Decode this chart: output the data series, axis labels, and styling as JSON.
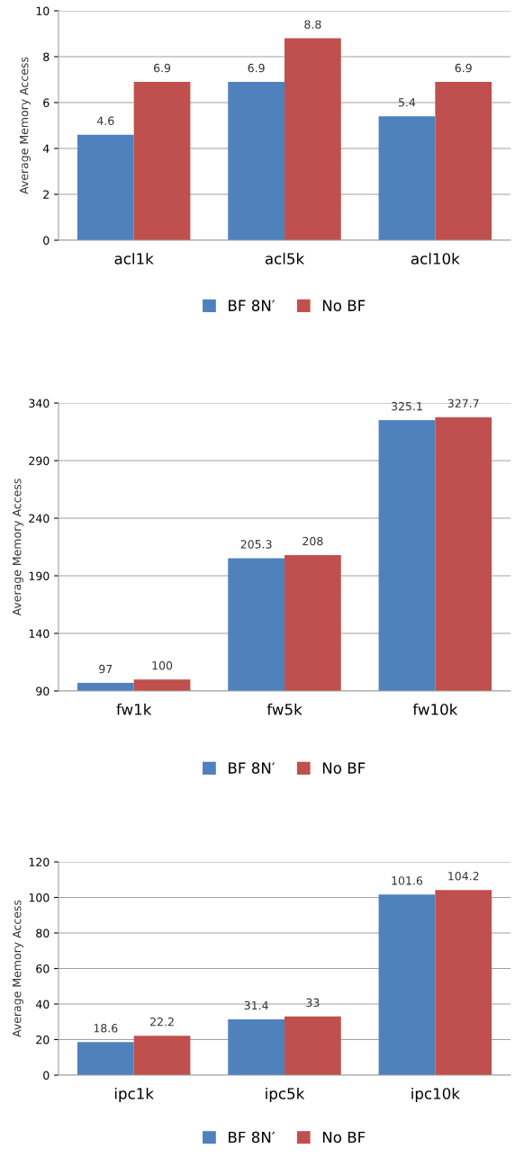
{
  "chart_data": [
    {
      "type": "bar",
      "ylabel": "Average Memory Access",
      "categories": [
        "acl1k",
        "acl5k",
        "acl10k"
      ],
      "series": [
        {
          "name": "BF 8N′",
          "color": "#4f81bd",
          "values": [
            4.6,
            6.9,
            5.4
          ]
        },
        {
          "name": "No BF",
          "color": "#c0504d",
          "values": [
            6.9,
            8.8,
            6.9
          ]
        }
      ],
      "ylim": [
        0,
        10
      ],
      "yticks": [
        0,
        2,
        4,
        6,
        8,
        10
      ],
      "grid": "y",
      "legend": "bottom",
      "data_labels": true
    },
    {
      "type": "bar",
      "ylabel": "Average Memory Access",
      "categories": [
        "fw1k",
        "fw5k",
        "fw10k"
      ],
      "series": [
        {
          "name": "BF 8N′",
          "color": "#4f81bd",
          "values": [
            97,
            205.3,
            325.1
          ]
        },
        {
          "name": "No BF",
          "color": "#c0504d",
          "values": [
            100,
            208,
            327.7
          ]
        }
      ],
      "ylim": [
        90,
        340
      ],
      "yticks": [
        90,
        140,
        190,
        240,
        290,
        340
      ],
      "grid": "y",
      "legend": "bottom",
      "data_labels": true
    },
    {
      "type": "bar",
      "ylabel": "Average Memory Access",
      "categories": [
        "ipc1k",
        "ipc5k",
        "ipc10k"
      ],
      "series": [
        {
          "name": "BF 8N′",
          "color": "#4f81bd",
          "values": [
            18.6,
            31.4,
            101.6
          ]
        },
        {
          "name": "No BF",
          "color": "#c0504d",
          "values": [
            22.2,
            33,
            104.2
          ]
        }
      ],
      "ylim": [
        0,
        120
      ],
      "yticks": [
        0,
        20,
        40,
        60,
        80,
        100,
        120
      ],
      "grid": "y",
      "legend": "bottom",
      "data_labels": true
    }
  ]
}
